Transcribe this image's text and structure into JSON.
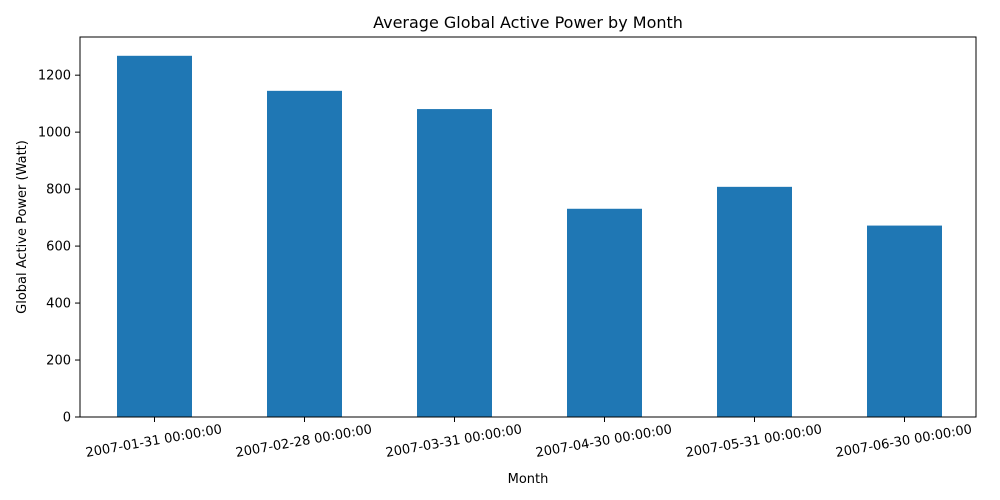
{
  "chart_data": {
    "type": "bar",
    "title": "Average Global Active Power by Month",
    "xlabel": "Month",
    "ylabel": "Global Active Power (Watt)",
    "categories": [
      "2007-01-31 00:00:00",
      "2007-02-28 00:00:00",
      "2007-03-31 00:00:00",
      "2007-04-30 00:00:00",
      "2007-05-31 00:00:00",
      "2007-06-30 00:00:00"
    ],
    "values": [
      1268,
      1145,
      1081,
      731,
      808,
      672
    ],
    "ylim": [
      0,
      1334
    ],
    "yticks": [
      0,
      200,
      400,
      600,
      800,
      1000,
      1200
    ],
    "ytick_labels": [
      "0",
      "200",
      "400",
      "600",
      "800",
      "1000",
      "1200"
    ],
    "bar_color": "#1f77b4",
    "xtick_rotation_deg": -10,
    "grid": false,
    "legend": "none"
  }
}
